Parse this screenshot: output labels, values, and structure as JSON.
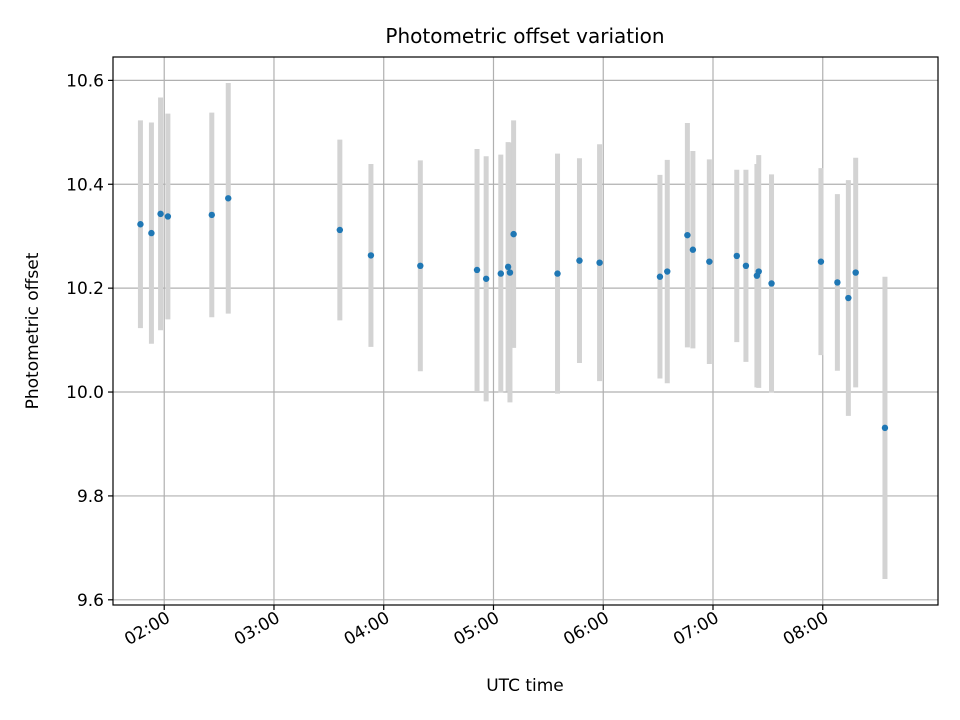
{
  "chart_data": {
    "type": "scatter",
    "title": "Photometric offset variation",
    "xlabel": "UTC time",
    "ylabel": "Photometric offset",
    "xlim": [
      "01:32",
      "09:03"
    ],
    "ylim": [
      9.59,
      10.645
    ],
    "x_ticks": [
      "02:00",
      "03:00",
      "04:00",
      "05:00",
      "06:00",
      "07:00",
      "08:00"
    ],
    "y_ticks": [
      "9.6",
      "9.8",
      "10.0",
      "10.2",
      "10.4",
      "10.6"
    ],
    "grid": true,
    "colors": {
      "points": "#1f77b4",
      "errorbars": "#d3d3d3",
      "grid": "#b0b0b0"
    },
    "points": [
      {
        "x": "01:47",
        "y": 10.323,
        "err": 0.2
      },
      {
        "x": "01:53",
        "y": 10.306,
        "err": 0.213
      },
      {
        "x": "01:58",
        "y": 10.343,
        "err": 0.224
      },
      {
        "x": "02:02",
        "y": 10.338,
        "err": 0.198
      },
      {
        "x": "02:26",
        "y": 10.341,
        "err": 0.197
      },
      {
        "x": "02:35",
        "y": 10.373,
        "err": 0.222
      },
      {
        "x": "03:36",
        "y": 10.312,
        "err": 0.174
      },
      {
        "x": "03:53",
        "y": 10.263,
        "err": 0.176
      },
      {
        "x": "04:20",
        "y": 10.243,
        "err": 0.203
      },
      {
        "x": "04:51",
        "y": 10.235,
        "err": 0.233
      },
      {
        "x": "04:56",
        "y": 10.218,
        "err": 0.236
      },
      {
        "x": "05:04",
        "y": 10.228,
        "err": 0.229
      },
      {
        "x": "05:08",
        "y": 10.241,
        "err": 0.24
      },
      {
        "x": "05:09",
        "y": 10.23,
        "err": 0.25
      },
      {
        "x": "05:11",
        "y": 10.304,
        "err": 0.219
      },
      {
        "x": "05:35",
        "y": 10.228,
        "err": 0.231
      },
      {
        "x": "05:47",
        "y": 10.253,
        "err": 0.197
      },
      {
        "x": "05:58",
        "y": 10.249,
        "err": 0.228
      },
      {
        "x": "06:31",
        "y": 10.222,
        "err": 0.196
      },
      {
        "x": "06:35",
        "y": 10.232,
        "err": 0.215
      },
      {
        "x": "06:46",
        "y": 10.302,
        "err": 0.216
      },
      {
        "x": "06:49",
        "y": 10.274,
        "err": 0.19
      },
      {
        "x": "06:58",
        "y": 10.251,
        "err": 0.197
      },
      {
        "x": "07:13",
        "y": 10.262,
        "err": 0.166
      },
      {
        "x": "07:18",
        "y": 10.243,
        "err": 0.185
      },
      {
        "x": "07:24",
        "y": 10.224,
        "err": 0.215
      },
      {
        "x": "07:25",
        "y": 10.232,
        "err": 0.224
      },
      {
        "x": "07:32",
        "y": 10.209,
        "err": 0.21
      },
      {
        "x": "07:59",
        "y": 10.251,
        "err": 0.18
      },
      {
        "x": "08:08",
        "y": 10.211,
        "err": 0.17
      },
      {
        "x": "08:14",
        "y": 10.181,
        "err": 0.227
      },
      {
        "x": "08:18",
        "y": 10.23,
        "err": 0.221
      },
      {
        "x": "08:34",
        "y": 9.931,
        "err": 0.291
      }
    ]
  }
}
